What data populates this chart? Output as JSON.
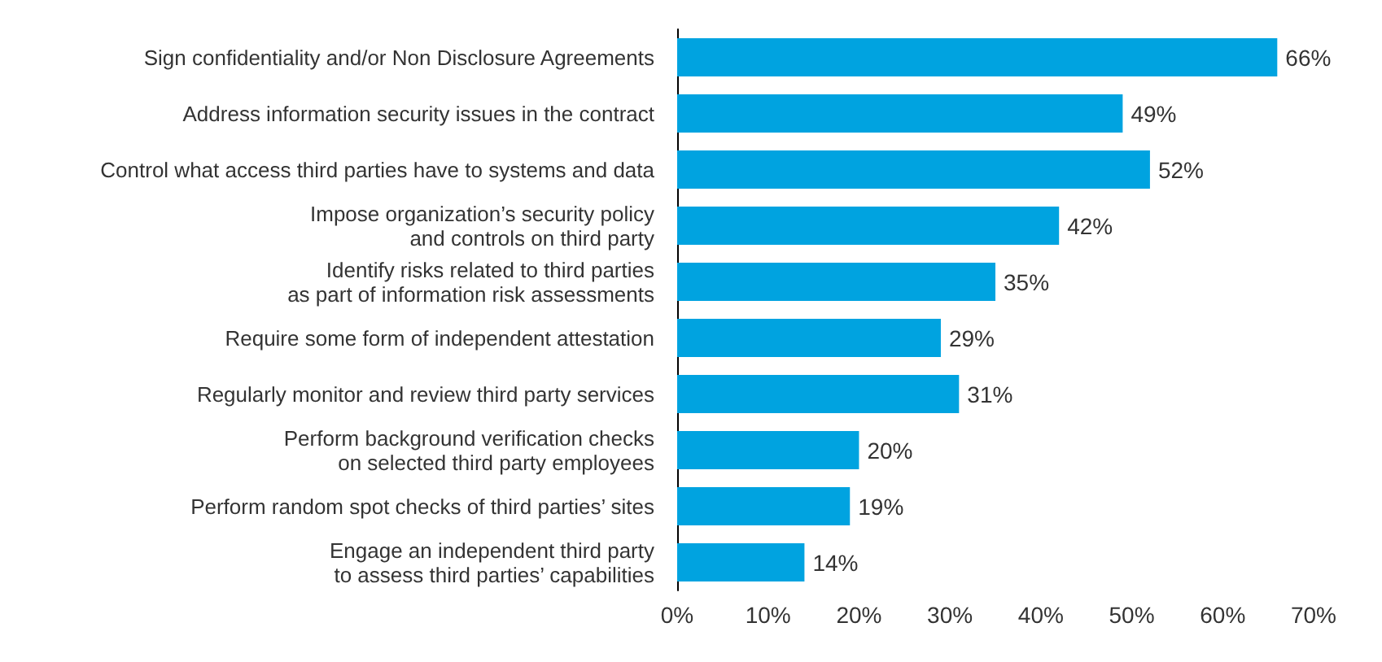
{
  "chart_data": {
    "type": "bar",
    "orientation": "horizontal",
    "categories": [
      "Sign confidentiality and/or Non Disclosure Agreements",
      "Address information security issues in the contract",
      "Control what access third parties have to systems and data",
      "Impose organization’s security policy\nand controls on third party",
      "Identify risks related to third parties\nas part of information risk assessments",
      "Require some form of independent attestation",
      "Regularly monitor and review third party services",
      "Perform background verification checks\non selected third party employees",
      "Perform random spot checks of third parties’ sites",
      "Engage an independent third party\nto assess third parties’ capabilities"
    ],
    "values": [
      66,
      49,
      52,
      42,
      35,
      29,
      31,
      20,
      19,
      14
    ],
    "value_labels": [
      "66%",
      "49%",
      "52%",
      "42%",
      "35%",
      "29%",
      "31%",
      "20%",
      "19%",
      "14%"
    ],
    "color": "#00a3e0",
    "xlim": [
      0,
      70
    ],
    "xticks": [
      {
        "value": 0,
        "label": "0%"
      },
      {
        "value": 10,
        "label": "10%"
      },
      {
        "value": 20,
        "label": "20%"
      },
      {
        "value": 30,
        "label": "30%"
      },
      {
        "value": 40,
        "label": "40%"
      },
      {
        "value": 50,
        "label": "50%"
      },
      {
        "value": 60,
        "label": "60%"
      },
      {
        "value": 70,
        "label": "70%"
      }
    ],
    "grid": false
  }
}
